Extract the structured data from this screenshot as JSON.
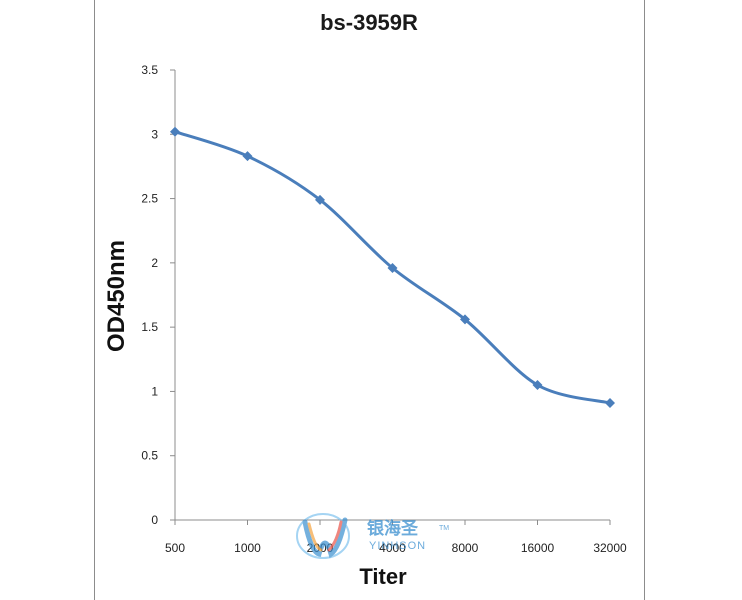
{
  "chart_data": {
    "type": "line",
    "title": "bs-3959R",
    "xlabel": "Titer",
    "ylabel": "OD450nm",
    "categories": [
      "500",
      "1000",
      "2000",
      "4000",
      "8000",
      "16000",
      "32000"
    ],
    "series": [
      {
        "values": [
          3.02,
          2.83,
          2.49,
          1.96,
          1.56,
          1.05,
          0.91
        ]
      }
    ],
    "ylim": [
      0,
      3.5
    ],
    "yticks": [
      "0",
      "0.5",
      "1",
      "1.5",
      "2",
      "2.5",
      "3",
      "3.5"
    ],
    "grid": false,
    "legend": "none",
    "colors": {
      "series": "#4a7ebb",
      "marker": "#4a7ebb"
    }
  },
  "watermark": {
    "name": "银海圣",
    "sub": "YINHSON",
    "tm": "TM",
    "logo": "yinhson-logo-icon"
  }
}
